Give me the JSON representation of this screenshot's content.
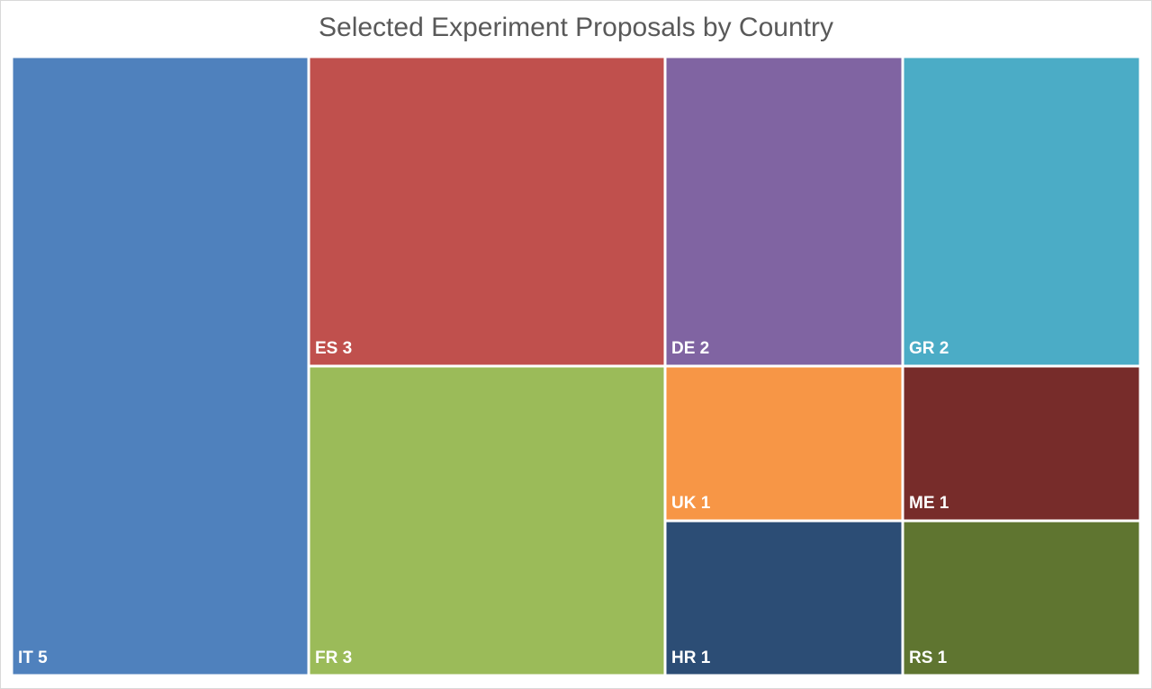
{
  "chart_data": {
    "type": "treemap",
    "title": "Selected Experiment Proposals by Country",
    "items": [
      {
        "label": "IT",
        "value": 5,
        "color": "#4f81bd"
      },
      {
        "label": "ES",
        "value": 3,
        "color": "#c0504d"
      },
      {
        "label": "FR",
        "value": 3,
        "color": "#9bbb59"
      },
      {
        "label": "DE",
        "value": 2,
        "color": "#8064a2"
      },
      {
        "label": "GR",
        "value": 2,
        "color": "#4bacc6"
      },
      {
        "label": "UK",
        "value": 1,
        "color": "#f79646"
      },
      {
        "label": "ME",
        "value": 1,
        "color": "#772c2a"
      },
      {
        "label": "HR",
        "value": 1,
        "color": "#2c4d75"
      },
      {
        "label": "RS",
        "value": 1,
        "color": "#5f7530"
      }
    ]
  }
}
